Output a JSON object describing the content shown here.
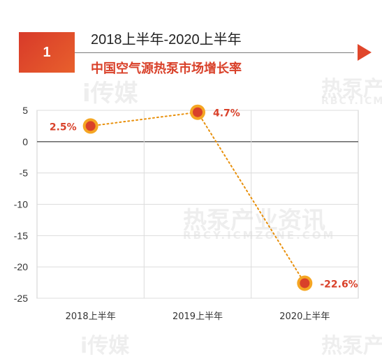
{
  "header": {
    "badge_number": "1",
    "period": "2018上半年-2020上半年",
    "title": "中国空气源热泵市场增长率",
    "accent_color": "#d9412a"
  },
  "watermarks": {
    "brand_1": "i传媒",
    "brand_2": "热泵产业资讯",
    "domain": "RBCY.ICMZONE.COM",
    "domain_short": "RBCY.ICM"
  },
  "chart_data": {
    "type": "line",
    "title": "",
    "xlabel": "",
    "ylabel": "",
    "categories": [
      "2018上半年",
      "2019上半年",
      "2020上半年"
    ],
    "series": [
      {
        "values": [
          2.5,
          4.7,
          -22.6
        ],
        "labels": [
          "2.5%",
          "4.7%",
          "-22.6%"
        ],
        "line_color": "#e8900c",
        "marker_fill": "#d9412a",
        "marker_ring": "#f5a623",
        "line_style": "dotted"
      }
    ],
    "ylim": [
      -25,
      5
    ],
    "yticks": [
      5,
      0,
      -5,
      -10,
      -15,
      -20,
      -25
    ],
    "grid": true,
    "legend": "none"
  }
}
